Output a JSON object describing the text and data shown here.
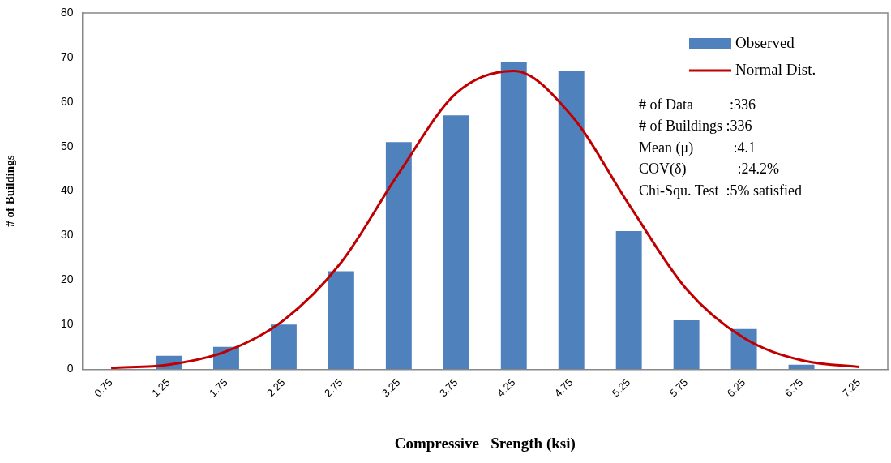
{
  "chart_data": {
    "type": "bar",
    "xlabel": "Compressive   Srength (ksi)",
    "ylabel": "# of Buildings",
    "categories": [
      "0.75",
      "1.25",
      "1.75",
      "2.25",
      "2.75",
      "3.25",
      "3.75",
      "4.25",
      "4.75",
      "5.25",
      "5.75",
      "6.25",
      "6.75",
      "7.25"
    ],
    "series": [
      {
        "name": "Observed",
        "color": "#4f81bd",
        "values": [
          0,
          3,
          5,
          10,
          22,
          51,
          57,
          69,
          67,
          31,
          11,
          9,
          1,
          0
        ]
      },
      {
        "name": "Normal Dist.",
        "type": "line",
        "color": "#c00000",
        "values": [
          0.3,
          1,
          4,
          11,
          24,
          44,
          62,
          67,
          57,
          37,
          18,
          7,
          2,
          0.5
        ]
      }
    ],
    "ylim": [
      0,
      80
    ],
    "yticks": [
      0,
      10,
      20,
      30,
      40,
      50,
      60,
      70,
      80
    ],
    "grid": false,
    "legend": "top right",
    "marker": "none",
    "line_style": "solid",
    "annotations": [
      "# of Data          :336",
      "# of Buildings :336",
      "Mean (μ)           :4.1",
      "COV(δ)              :24.2%",
      "Chi-Squ. Test  :5% satisfied"
    ]
  }
}
